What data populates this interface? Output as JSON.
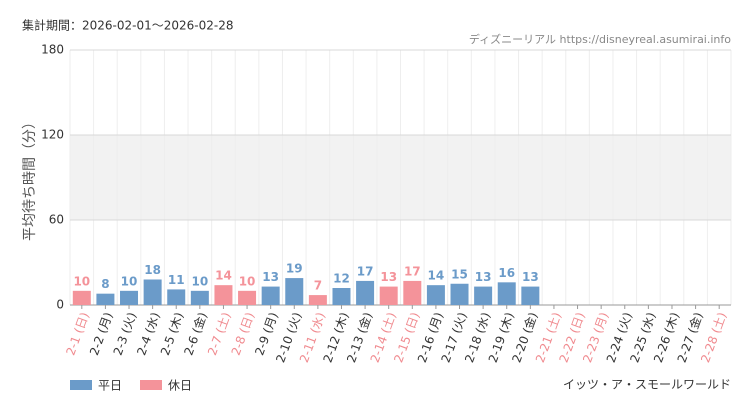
{
  "chart_data": {
    "type": "bar",
    "title": "集計期間：2026-02-01〜2026-02-28",
    "source": "ディズニーリアル https://disneyreal.asumirai.info",
    "ylabel": "平均待ち時間（分）",
    "caption": "イッツ・ア・スモールワールド",
    "categories": [
      "2-1 (日)",
      "2-2 (月)",
      "2-3 (火)",
      "2-4 (水)",
      "2-5 (木)",
      "2-6 (金)",
      "2-7 (土)",
      "2-8 (日)",
      "2-9 (月)",
      "2-10 (火)",
      "2-11 (水)",
      "2-12 (木)",
      "2-13 (金)",
      "2-14 (土)",
      "2-15 (日)",
      "2-16 (月)",
      "2-17 (火)",
      "2-18 (水)",
      "2-19 (木)",
      "2-20 (金)",
      "2-21 (土)",
      "2-22 (日)",
      "2-23 (月)",
      "2-24 (火)",
      "2-25 (水)",
      "2-26 (木)",
      "2-27 (金)",
      "2-28 (土)"
    ],
    "label_colors": [
      "#f08a8f",
      "#333333",
      "#333333",
      "#333333",
      "#333333",
      "#333333",
      "#f08a8f",
      "#f08a8f",
      "#333333",
      "#333333",
      "#f08a8f",
      "#333333",
      "#333333",
      "#f08a8f",
      "#f08a8f",
      "#333333",
      "#333333",
      "#333333",
      "#333333",
      "#333333",
      "#f08a8f",
      "#f08a8f",
      "#f08a8f",
      "#333333",
      "#333333",
      "#333333",
      "#333333",
      "#f08a8f"
    ],
    "series": [
      {
        "name": "平日",
        "color": "#6b9bc9",
        "values": [
          null,
          8,
          10,
          18,
          11,
          10,
          null,
          null,
          13,
          19,
          null,
          12,
          17,
          null,
          null,
          14,
          15,
          13,
          16,
          13,
          null,
          null,
          null,
          null,
          null,
          null,
          null,
          null
        ]
      },
      {
        "name": "休日",
        "color": "#f4939a",
        "values": [
          10,
          null,
          null,
          null,
          null,
          null,
          14,
          10,
          null,
          null,
          7,
          null,
          null,
          13,
          17,
          null,
          null,
          null,
          null,
          null,
          null,
          null,
          null,
          null,
          null,
          null,
          null,
          null
        ]
      }
    ],
    "ylim": [
      0,
      180
    ],
    "yticks": [
      0,
      60,
      120,
      180
    ],
    "grid": true
  }
}
